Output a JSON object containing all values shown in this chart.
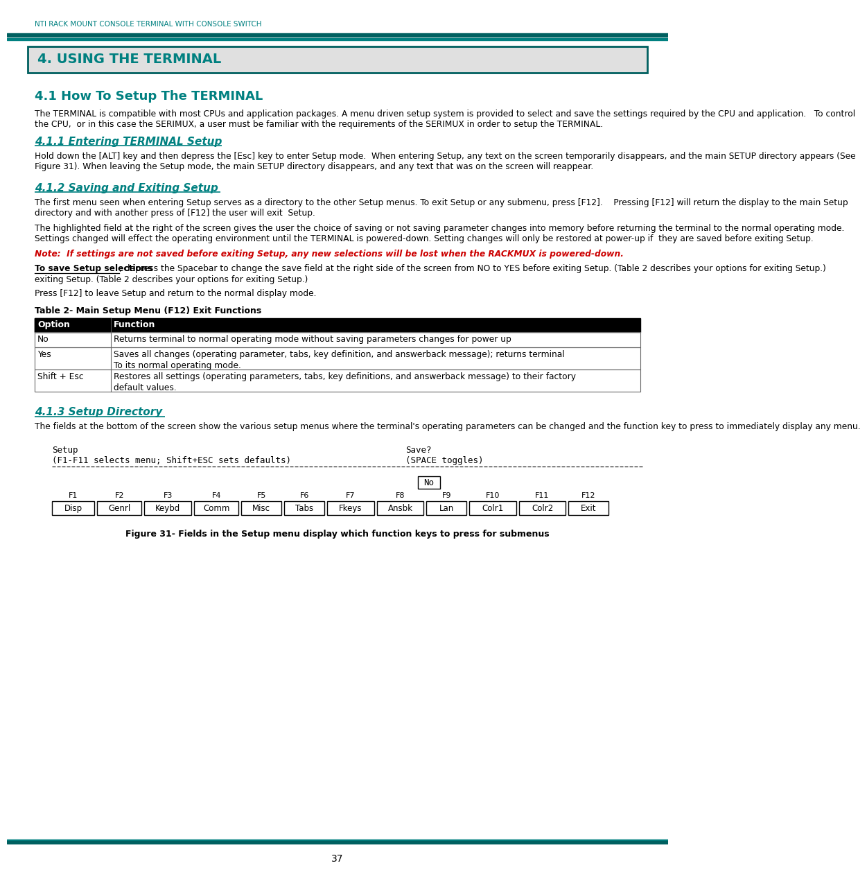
{
  "teal_color": "#008080",
  "dark_teal": "#006060",
  "black": "#000000",
  "white": "#ffffff",
  "light_gray": "#e0e0e0",
  "red_note": "#CC0000",
  "page_bg": "#ffffff",
  "header_title": "NTI RACK MOUNT CONSOLE TERMINAL WITH CONSOLE SWITCH",
  "section_title": "4. USING THE TERMINAL",
  "sub_title1": "4.1 How To Setup The TERMINAL",
  "para1": "The TERMINAL is compatible with most CPUs and application packages. A menu driven setup system is provided to select and save the settings required by the CPU and application.   To control the CPU,  or in this case the SERIMUX, a user must be familiar with the requirements of the SERIMUX in order to setup the TERMINAL.",
  "sub_title2": "4.1.1 Entering TERMINAL Setup",
  "para2": "Hold down the [ALT] key and then depress the [Esc] key to enter Setup mode.  When entering Setup, any text on the screen temporarily disappears, and the main SETUP directory appears (See Figure 31). When leaving the Setup mode, the main SETUP directory disappears, and any text that was on the screen will reappear.",
  "sub_title3": "4.1.2 Saving and Exiting Setup",
  "para3a": "The first menu seen when entering Setup serves as a directory to the other Setup menus. To exit Setup or any submenu, press [F12].    Pressing [F12] will return the display to the main Setup directory and with another press of [F12] the user will exit  Setup.",
  "para3b": "The highlighted field at the right of the screen gives the user the choice of saving or not saving parameter changes into memory before returning the terminal to the normal operating mode.    Settings changed will effect the operating environment until the TERMINAL is powered-down. Setting changes will only be restored at power-up if  they are saved before exiting Setup.",
  "note_text": "Note:  If settings are not saved before exiting Setup, any new selections will be lost when the RACKMUX is powered-down.",
  "para_save1": "To save Setup selections",
  "para_save2": ", depress the Spacebar to change the save field at the right side of the screen from NO to YES before exiting Setup. (Table 2 describes your options for exiting Setup.)",
  "para_press": "Press [F12] to leave Setup and return to the normal display mode.",
  "table_title": "Table 2- Main Setup Menu (F12) Exit Functions",
  "table_headers": [
    "Option",
    "Function"
  ],
  "table_rows": [
    [
      "No",
      "Returns terminal to normal operating mode without saving parameters changes for power up"
    ],
    [
      "Yes",
      "Saves all changes (operating parameter, tabs, key definition, and answerback message); returns terminal\nTo its normal operating mode."
    ],
    [
      "Shift + Esc",
      "Restores all settings (operating parameters, tabs, key definitions, and answerback message) to their factory\ndefault values."
    ]
  ],
  "sub_title4": "4.1.3 Setup Directory",
  "para4": "The fields at the bottom of the screen show the various setup menus where the terminal's operating parameters can be changed and the function key to press to immediately display any menu.",
  "terminal_fn_keys": [
    "F1",
    "F2",
    "F3",
    "F4",
    "F5",
    "F6",
    "F7",
    "F8",
    "F9",
    "F10",
    "F11",
    "F12"
  ],
  "terminal_fn_labels": [
    "Disp",
    "Genrl",
    "Keybd",
    "Comm",
    "Misc",
    "Tabs",
    "Fkeys",
    "Ansbk",
    "Lan",
    "Colr1",
    "Colr2",
    "Exit"
  ],
  "figure_caption": "Figure 31- Fields in the Setup menu display which function keys to press for submenus",
  "page_number": "37"
}
